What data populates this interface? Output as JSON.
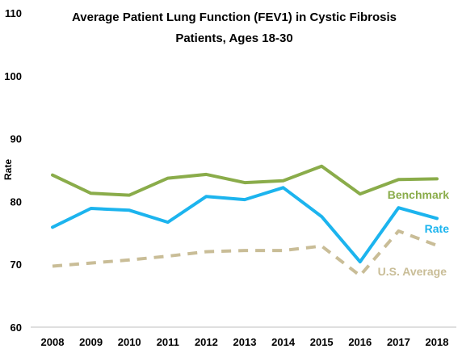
{
  "chart_data": {
    "type": "line",
    "title_lines": [
      "Average Patient Lung Function (FEV1) in Cystic Fibrosis",
      "Patients, Ages 18-30"
    ],
    "xlabel": "",
    "ylabel": "Rate",
    "ylim": [
      60,
      110
    ],
    "yticks": [
      60,
      70,
      80,
      90,
      100,
      110
    ],
    "categories": [
      "2008",
      "2009",
      "2010",
      "2011",
      "2012",
      "2013",
      "2014",
      "2015",
      "2016",
      "2017",
      "2018"
    ],
    "grid": false,
    "series": [
      {
        "name": "Benchmark",
        "color": "#8aac4a",
        "style": "solid",
        "values": [
          84.2,
          81.3,
          81.0,
          83.7,
          84.3,
          83.0,
          83.3,
          85.6,
          81.2,
          83.5,
          83.6
        ]
      },
      {
        "name": "Rate",
        "color": "#1cb4ee",
        "style": "solid",
        "values": [
          75.9,
          78.9,
          78.6,
          76.7,
          80.8,
          80.3,
          82.2,
          77.6,
          70.4,
          79.0,
          77.3
        ]
      },
      {
        "name": "U.S. Average",
        "color": "#c9bd97",
        "style": "dashed",
        "values": [
          69.7,
          70.2,
          70.7,
          71.3,
          72.0,
          72.2,
          72.2,
          72.9,
          68.2,
          75.3,
          73.0
        ]
      }
    ]
  }
}
